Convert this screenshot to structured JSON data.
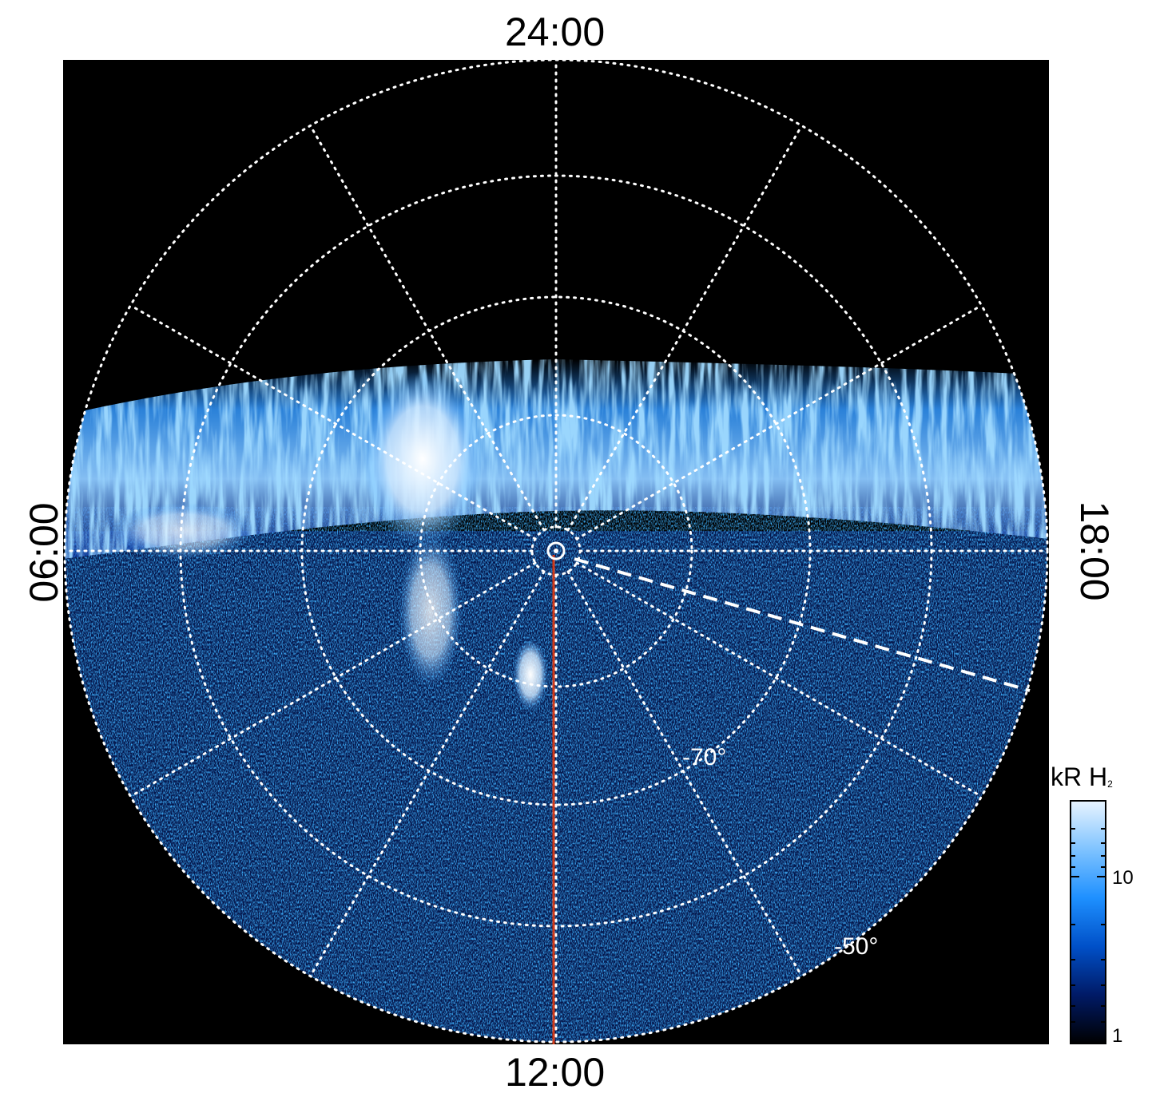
{
  "local_time_labels": {
    "top": "24:00",
    "bottom": "12:00",
    "left": "06:00",
    "right": "18:00"
  },
  "latitude_labels": {
    "inner": "-70°",
    "outer": "-50°"
  },
  "colorbar": {
    "title": "kR H",
    "title_sub": "2",
    "ticks": [
      "10",
      "1"
    ],
    "scale": "log",
    "colors": [
      "#000000",
      "#001a66",
      "#0050c8",
      "#1e90ff",
      "#7fc3ff",
      "#e8f4ff"
    ]
  },
  "colors": {
    "background": "#000000",
    "grid": "#ffffff",
    "noon_meridian": "#d03a1a",
    "aurora_bright": "#ffffff",
    "aurora_mid": "#4aa8ff",
    "aurora_dark": "#002a9a"
  }
}
